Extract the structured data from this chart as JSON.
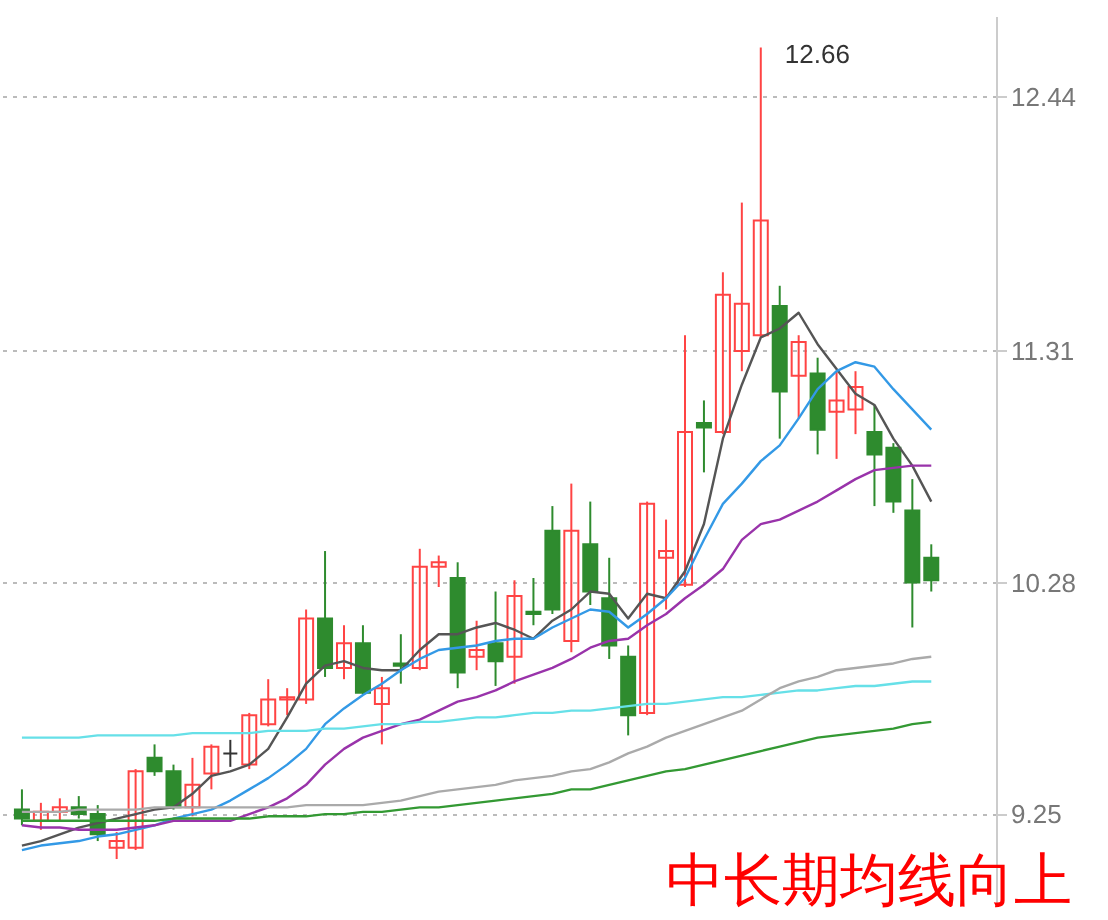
{
  "chart_data": {
    "type": "candlestick",
    "categories": [
      null,
      null,
      null,
      null,
      null,
      null,
      null,
      null,
      null,
      null,
      null,
      null,
      null,
      null,
      null,
      null,
      null,
      null,
      null,
      null,
      null,
      null,
      null,
      null,
      null,
      null,
      null,
      null,
      null,
      null,
      null,
      null,
      null,
      null,
      null,
      null,
      null,
      null,
      null,
      null,
      null,
      null,
      null,
      null,
      null,
      null,
      null,
      null,
      null
    ],
    "ohlc": [
      [
        9.27,
        9.36,
        9.2,
        9.23
      ],
      [
        9.22,
        9.3,
        9.18,
        9.26
      ],
      [
        9.26,
        9.32,
        9.22,
        9.28
      ],
      [
        9.28,
        9.33,
        9.23,
        9.25
      ],
      [
        9.25,
        9.29,
        9.13,
        9.16
      ],
      [
        9.1,
        9.17,
        9.05,
        9.13
      ],
      [
        9.1,
        9.45,
        9.09,
        9.44
      ],
      [
        9.5,
        9.56,
        9.42,
        9.44
      ],
      [
        9.44,
        9.47,
        9.27,
        9.28
      ],
      [
        9.28,
        9.5,
        9.24,
        9.38
      ],
      [
        9.43,
        9.56,
        9.36,
        9.55
      ],
      [
        9.52,
        9.58,
        9.46,
        9.52
      ],
      [
        9.47,
        9.7,
        9.45,
        9.69
      ],
      [
        9.65,
        9.85,
        9.64,
        9.76
      ],
      [
        9.76,
        9.81,
        9.69,
        9.77
      ],
      [
        9.76,
        10.16,
        9.74,
        10.12
      ],
      [
        10.12,
        10.42,
        9.86,
        9.9
      ],
      [
        9.9,
        10.09,
        9.85,
        10.01
      ],
      [
        10.01,
        10.09,
        9.78,
        9.79
      ],
      [
        9.74,
        9.86,
        9.56,
        9.81
      ],
      [
        9.92,
        10.05,
        9.83,
        9.91
      ],
      [
        9.9,
        10.43,
        9.89,
        10.35
      ],
      [
        10.35,
        10.4,
        10.26,
        10.37
      ],
      [
        10.3,
        10.37,
        9.81,
        9.88
      ],
      [
        9.95,
        10.11,
        9.89,
        9.98
      ],
      [
        10.01,
        10.24,
        9.82,
        9.93
      ],
      [
        9.95,
        10.29,
        9.83,
        10.22
      ],
      [
        10.15,
        10.3,
        10.09,
        10.14
      ],
      [
        10.51,
        10.62,
        10.14,
        10.16
      ],
      [
        10.02,
        10.72,
        9.97,
        10.51
      ],
      [
        10.45,
        10.64,
        10.18,
        10.24
      ],
      [
        10.21,
        10.39,
        9.94,
        10.0
      ],
      [
        9.95,
        10.0,
        9.6,
        9.69
      ],
      [
        9.7,
        10.64,
        9.69,
        10.63
      ],
      [
        10.39,
        10.56,
        10.16,
        10.42
      ],
      [
        10.27,
        11.38,
        10.26,
        10.95
      ],
      [
        10.99,
        11.09,
        10.77,
        10.97
      ],
      [
        10.95,
        11.66,
        10.94,
        11.56
      ],
      [
        11.31,
        11.97,
        11.22,
        11.52
      ],
      [
        11.38,
        12.66,
        11.37,
        11.89
      ],
      [
        11.51,
        11.6,
        10.92,
        11.13
      ],
      [
        11.2,
        11.38,
        11.01,
        11.35
      ],
      [
        11.21,
        11.28,
        10.85,
        10.96
      ],
      [
        11.04,
        11.22,
        10.83,
        11.09
      ],
      [
        11.05,
        11.22,
        10.94,
        11.15
      ],
      [
        10.95,
        11.07,
        10.62,
        10.85
      ],
      [
        10.88,
        10.9,
        10.59,
        10.64
      ],
      [
        10.6,
        10.74,
        10.08,
        10.28
      ],
      [
        10.39,
        10.45,
        10.24,
        10.29
      ]
    ],
    "colors": [
      "#2e8b2e",
      "#ff4444",
      "#ff4444",
      "#2e8b2e",
      "#2e8b2e",
      "#ff4444",
      "#ff4444",
      "#2e8b2e",
      "#2e8b2e",
      "#ff4444",
      "#ff4444",
      "#333333",
      "#ff4444",
      "#ff4444",
      "#ff4444",
      "#ff4444",
      "#2e8b2e",
      "#ff4444",
      "#2e8b2e",
      "#ff4444",
      "#2e8b2e",
      "#ff4444",
      "#ff4444",
      "#2e8b2e",
      "#ff4444",
      "#2e8b2e",
      "#ff4444",
      "#2e8b2e",
      "#2e8b2e",
      "#ff4444",
      "#2e8b2e",
      "#2e8b2e",
      "#2e8b2e",
      "#ff4444",
      "#ff4444",
      "#ff4444",
      "#2e8b2e",
      "#ff4444",
      "#ff4444",
      "#ff4444",
      "#2e8b2e",
      "#ff4444",
      "#2e8b2e",
      "#ff4444",
      "#ff4444",
      "#2e8b2e",
      "#2e8b2e",
      "#2e8b2e",
      "#2e8b2e"
    ],
    "series": [
      {
        "type": "line",
        "color": "#555555",
        "values": [
          9.11,
          9.13,
          9.16,
          9.19,
          9.21,
          9.23,
          9.25,
          9.27,
          9.28,
          9.34,
          9.42,
          9.44,
          9.47,
          9.54,
          9.68,
          9.83,
          9.91,
          9.93,
          9.9,
          9.89,
          9.89,
          9.98,
          10.05,
          10.05,
          10.08,
          10.1,
          10.07,
          10.03,
          10.11,
          10.16,
          10.24,
          10.23,
          10.12,
          10.23,
          10.21,
          10.33,
          10.54,
          10.92,
          11.16,
          11.37,
          11.41,
          11.48,
          11.34,
          11.23,
          11.12,
          11.07,
          10.92,
          10.8,
          10.64
        ]
      },
      {
        "type": "line",
        "color": "#3399e6",
        "values": [
          9.09,
          9.11,
          9.12,
          9.13,
          9.15,
          9.16,
          9.18,
          9.2,
          9.23,
          9.25,
          9.27,
          9.31,
          9.36,
          9.41,
          9.47,
          9.54,
          9.65,
          9.72,
          9.78,
          9.83,
          9.89,
          9.94,
          9.98,
          9.99,
          10.0,
          10.02,
          10.03,
          10.03,
          10.08,
          10.12,
          10.16,
          10.15,
          10.08,
          10.14,
          10.21,
          10.3,
          10.47,
          10.63,
          10.72,
          10.82,
          10.89,
          11.01,
          11.14,
          11.22,
          11.26,
          11.24,
          11.14,
          11.05,
          10.96
        ]
      },
      {
        "type": "line",
        "color": "#9933aa",
        "values": [
          9.2,
          9.19,
          9.19,
          9.18,
          9.18,
          9.18,
          9.19,
          9.2,
          9.22,
          9.22,
          9.22,
          9.22,
          9.25,
          9.28,
          9.32,
          9.38,
          9.47,
          9.54,
          9.59,
          9.62,
          9.65,
          9.67,
          9.71,
          9.75,
          9.77,
          9.8,
          9.84,
          9.87,
          9.9,
          9.94,
          9.99,
          10.02,
          10.03,
          10.09,
          10.14,
          10.21,
          10.27,
          10.34,
          10.47,
          10.54,
          10.56,
          10.6,
          10.64,
          10.69,
          10.74,
          10.78,
          10.79,
          10.8,
          10.8
        ]
      },
      {
        "type": "line",
        "color": "#66e0e8",
        "values": [
          9.59,
          9.59,
          9.59,
          9.59,
          9.6,
          9.6,
          9.6,
          9.6,
          9.6,
          9.61,
          9.61,
          9.61,
          9.61,
          9.62,
          9.62,
          9.62,
          9.63,
          9.63,
          9.64,
          9.65,
          9.65,
          9.66,
          9.66,
          9.67,
          9.68,
          9.68,
          9.69,
          9.7,
          9.7,
          9.71,
          9.71,
          9.72,
          9.73,
          9.74,
          9.74,
          9.75,
          9.76,
          9.77,
          9.77,
          9.78,
          9.79,
          9.8,
          9.8,
          9.81,
          9.82,
          9.82,
          9.83,
          9.84,
          9.84
        ]
      },
      {
        "type": "line",
        "color": "#aaaaaa",
        "values": [
          9.26,
          9.26,
          9.26,
          9.27,
          9.27,
          9.27,
          9.27,
          9.28,
          9.28,
          9.28,
          9.28,
          9.28,
          9.28,
          9.28,
          9.28,
          9.29,
          9.29,
          9.29,
          9.29,
          9.3,
          9.31,
          9.33,
          9.35,
          9.36,
          9.37,
          9.38,
          9.4,
          9.41,
          9.42,
          9.44,
          9.45,
          9.48,
          9.52,
          9.55,
          9.59,
          9.62,
          9.65,
          9.68,
          9.71,
          9.76,
          9.81,
          9.84,
          9.86,
          9.89,
          9.9,
          9.91,
          9.92,
          9.94,
          9.95
        ]
      },
      {
        "type": "line",
        "color": "#339933",
        "values": [
          9.22,
          9.22,
          9.22,
          9.22,
          9.22,
          9.22,
          9.22,
          9.22,
          9.23,
          9.23,
          9.23,
          9.23,
          9.23,
          9.24,
          9.24,
          9.24,
          9.25,
          9.25,
          9.26,
          9.26,
          9.27,
          9.28,
          9.28,
          9.29,
          9.3,
          9.31,
          9.32,
          9.33,
          9.34,
          9.36,
          9.36,
          9.38,
          9.4,
          9.42,
          9.44,
          9.45,
          9.47,
          9.49,
          9.51,
          9.53,
          9.55,
          9.57,
          9.59,
          9.6,
          9.61,
          9.62,
          9.63,
          9.65,
          9.66
        ]
      }
    ],
    "ylim": [
      8.85,
      12.8
    ],
    "yticks": [
      9.25,
      10.28,
      11.31,
      12.44
    ],
    "grid": "y",
    "tick_labels": "y",
    "annotations": [
      "12.66",
      "中长期均线向上"
    ]
  }
}
